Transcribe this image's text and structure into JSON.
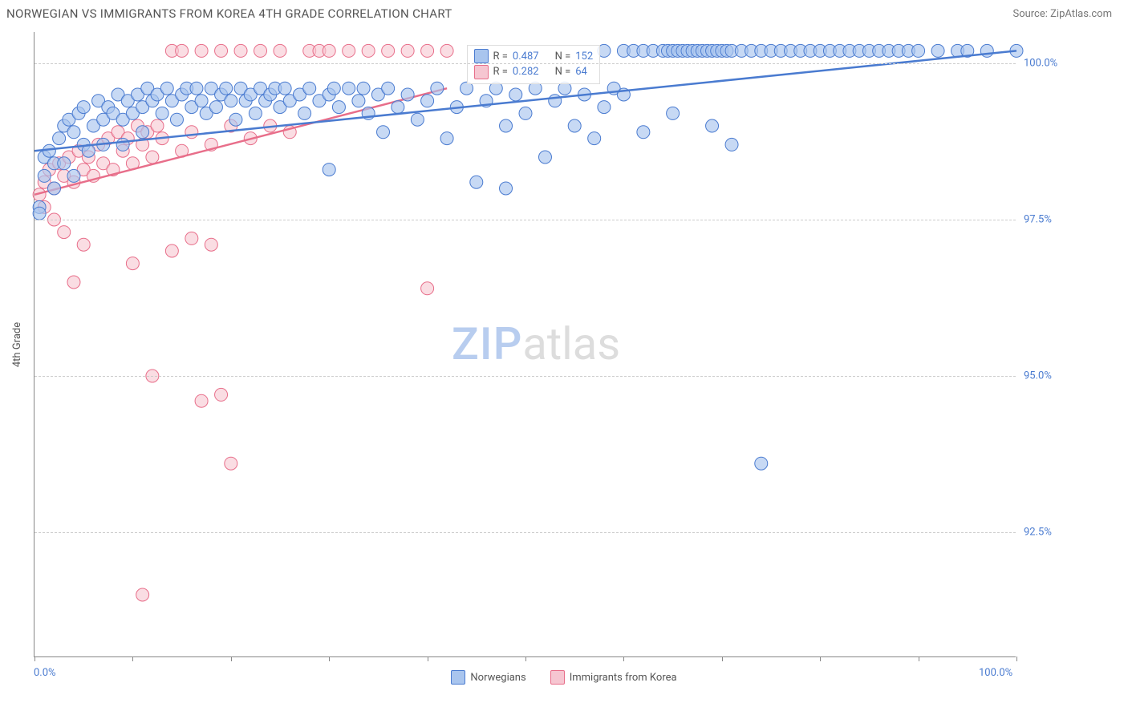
{
  "header": {
    "title": "NORWEGIAN VS IMMIGRANTS FROM KOREA 4TH GRADE CORRELATION CHART",
    "source": "Source: ZipAtlas.com"
  },
  "axis": {
    "y_title": "4th Grade",
    "x_min_label": "0.0%",
    "x_max_label": "100.0%",
    "y_ticks": [
      {
        "v": 92.5,
        "label": "92.5%"
      },
      {
        "v": 95.0,
        "label": "95.0%"
      },
      {
        "v": 97.5,
        "label": "97.5%"
      },
      {
        "v": 100.0,
        "label": "100.0%"
      }
    ],
    "x_ticks_pct": [
      0,
      10,
      20,
      30,
      40,
      50,
      60,
      70,
      80,
      90,
      100
    ],
    "x_range": [
      0,
      100
    ],
    "y_range": [
      90.5,
      100.5
    ]
  },
  "legend_top": {
    "rows": [
      {
        "color_fill": "#a9c5ee",
        "color_stroke": "#4a7bd0",
        "r_label": "R =",
        "r_val": "0.487",
        "n_label": "N =",
        "n_val": "152"
      },
      {
        "color_fill": "#f6c6d1",
        "color_stroke": "#e86e8a",
        "r_label": "R =",
        "r_val": "0.282",
        "n_label": "N =",
        "n_val": " 64"
      }
    ]
  },
  "legend_bottom": {
    "items": [
      {
        "label": "Norwegians",
        "fill": "#a9c5ee",
        "stroke": "#4a7bd0"
      },
      {
        "label": "Immigrants from Korea",
        "fill": "#f6c6d1",
        "stroke": "#e86e8a"
      }
    ]
  },
  "watermark": {
    "pre": "ZIP",
    "post": "atlas"
  },
  "series": {
    "blue": {
      "fill": "#a9c5ee",
      "stroke": "#4a7bd0",
      "opacity": 0.65,
      "radius": 8,
      "trend": {
        "x1": 0,
        "y1": 98.6,
        "x2": 100,
        "y2": 100.2,
        "width": 2.5
      },
      "points": [
        [
          0.5,
          97.7
        ],
        [
          0.5,
          97.6
        ],
        [
          1,
          98.2
        ],
        [
          1,
          98.5
        ],
        [
          1.5,
          98.6
        ],
        [
          2,
          98.4
        ],
        [
          2,
          98.0
        ],
        [
          2.5,
          98.8
        ],
        [
          3,
          99.0
        ],
        [
          3,
          98.4
        ],
        [
          3.5,
          99.1
        ],
        [
          4,
          98.9
        ],
        [
          4,
          98.2
        ],
        [
          4.5,
          99.2
        ],
        [
          5,
          98.7
        ],
        [
          5,
          99.3
        ],
        [
          5.5,
          98.6
        ],
        [
          6,
          99.0
        ],
        [
          6.5,
          99.4
        ],
        [
          7,
          99.1
        ],
        [
          7,
          98.7
        ],
        [
          7.5,
          99.3
        ],
        [
          8,
          99.2
        ],
        [
          8.5,
          99.5
        ],
        [
          9,
          99.1
        ],
        [
          9,
          98.7
        ],
        [
          9.5,
          99.4
        ],
        [
          10,
          99.2
        ],
        [
          10.5,
          99.5
        ],
        [
          11,
          99.3
        ],
        [
          11,
          98.9
        ],
        [
          11.5,
          99.6
        ],
        [
          12,
          99.4
        ],
        [
          12.5,
          99.5
        ],
        [
          13,
          99.2
        ],
        [
          13.5,
          99.6
        ],
        [
          14,
          99.4
        ],
        [
          14.5,
          99.1
        ],
        [
          15,
          99.5
        ],
        [
          15.5,
          99.6
        ],
        [
          16,
          99.3
        ],
        [
          16.5,
          99.6
        ],
        [
          17,
          99.4
        ],
        [
          17.5,
          99.2
        ],
        [
          18,
          99.6
        ],
        [
          18.5,
          99.3
        ],
        [
          19,
          99.5
        ],
        [
          19.5,
          99.6
        ],
        [
          20,
          99.4
        ],
        [
          20.5,
          99.1
        ],
        [
          21,
          99.6
        ],
        [
          21.5,
          99.4
        ],
        [
          22,
          99.5
        ],
        [
          22.5,
          99.2
        ],
        [
          23,
          99.6
        ],
        [
          23.5,
          99.4
        ],
        [
          24,
          99.5
        ],
        [
          24.5,
          99.6
        ],
        [
          25,
          99.3
        ],
        [
          25.5,
          99.6
        ],
        [
          26,
          99.4
        ],
        [
          27,
          99.5
        ],
        [
          27.5,
          99.2
        ],
        [
          28,
          99.6
        ],
        [
          29,
          99.4
        ],
        [
          30,
          99.5
        ],
        [
          30,
          98.3
        ],
        [
          30.5,
          99.6
        ],
        [
          31,
          99.3
        ],
        [
          32,
          99.6
        ],
        [
          33,
          99.4
        ],
        [
          33.5,
          99.6
        ],
        [
          34,
          99.2
        ],
        [
          35,
          99.5
        ],
        [
          35.5,
          98.9
        ],
        [
          36,
          99.6
        ],
        [
          37,
          99.3
        ],
        [
          38,
          99.5
        ],
        [
          39,
          99.1
        ],
        [
          40,
          99.4
        ],
        [
          41,
          99.6
        ],
        [
          42,
          98.8
        ],
        [
          43,
          99.3
        ],
        [
          44,
          99.6
        ],
        [
          45,
          98.1
        ],
        [
          46,
          99.4
        ],
        [
          47,
          99.6
        ],
        [
          48,
          98.0
        ],
        [
          48,
          99.0
        ],
        [
          49,
          99.5
        ],
        [
          50,
          99.2
        ],
        [
          51,
          99.6
        ],
        [
          52,
          98.5
        ],
        [
          53,
          99.4
        ],
        [
          54,
          99.6
        ],
        [
          55,
          99.0
        ],
        [
          56,
          99.5
        ],
        [
          57,
          98.8
        ],
        [
          58,
          99.3
        ],
        [
          58,
          100.2
        ],
        [
          59,
          99.6
        ],
        [
          60,
          99.5
        ],
        [
          60,
          100.2
        ],
        [
          61,
          100.2
        ],
        [
          62,
          100.2
        ],
        [
          62,
          98.9
        ],
        [
          63,
          100.2
        ],
        [
          64,
          100.2
        ],
        [
          64.5,
          100.2
        ],
        [
          65,
          100.2
        ],
        [
          65,
          99.2
        ],
        [
          65.5,
          100.2
        ],
        [
          66,
          100.2
        ],
        [
          66.5,
          100.2
        ],
        [
          67,
          100.2
        ],
        [
          67.5,
          100.2
        ],
        [
          68,
          100.2
        ],
        [
          68.5,
          100.2
        ],
        [
          69,
          100.2
        ],
        [
          69,
          99.0
        ],
        [
          69.5,
          100.2
        ],
        [
          70,
          100.2
        ],
        [
          70.5,
          100.2
        ],
        [
          71,
          100.2
        ],
        [
          71,
          98.7
        ],
        [
          72,
          100.2
        ],
        [
          73,
          100.2
        ],
        [
          74,
          100.2
        ],
        [
          74,
          93.6
        ],
        [
          75,
          100.2
        ],
        [
          76,
          100.2
        ],
        [
          77,
          100.2
        ],
        [
          78,
          100.2
        ],
        [
          79,
          100.2
        ],
        [
          80,
          100.2
        ],
        [
          81,
          100.2
        ],
        [
          82,
          100.2
        ],
        [
          83,
          100.2
        ],
        [
          84,
          100.2
        ],
        [
          85,
          100.2
        ],
        [
          86,
          100.2
        ],
        [
          87,
          100.2
        ],
        [
          88,
          100.2
        ],
        [
          89,
          100.2
        ],
        [
          90,
          100.2
        ],
        [
          92,
          100.2
        ],
        [
          94,
          100.2
        ],
        [
          95,
          100.2
        ],
        [
          97,
          100.2
        ],
        [
          100,
          100.2
        ]
      ]
    },
    "pink": {
      "fill": "#f6c6d1",
      "stroke": "#e86e8a",
      "opacity": 0.6,
      "radius": 8,
      "trend": {
        "x1": 0,
        "y1": 97.9,
        "x2": 42,
        "y2": 99.6,
        "width": 2.5
      },
      "points": [
        [
          0.5,
          97.9
        ],
        [
          1,
          98.1
        ],
        [
          1,
          97.7
        ],
        [
          1.5,
          98.3
        ],
        [
          2,
          98.0
        ],
        [
          2,
          97.5
        ],
        [
          2.5,
          98.4
        ],
        [
          3,
          98.2
        ],
        [
          3,
          97.3
        ],
        [
          3.5,
          98.5
        ],
        [
          4,
          98.1
        ],
        [
          4,
          96.5
        ],
        [
          4.5,
          98.6
        ],
        [
          5,
          98.3
        ],
        [
          5,
          97.1
        ],
        [
          5.5,
          98.5
        ],
        [
          6,
          98.2
        ],
        [
          6.5,
          98.7
        ],
        [
          7,
          98.4
        ],
        [
          7.5,
          98.8
        ],
        [
          8,
          98.3
        ],
        [
          8.5,
          98.9
        ],
        [
          9,
          98.6
        ],
        [
          9.5,
          98.8
        ],
        [
          10,
          98.4
        ],
        [
          10,
          96.8
        ],
        [
          10.5,
          99.0
        ],
        [
          11,
          98.7
        ],
        [
          11,
          91.5
        ],
        [
          11.5,
          98.9
        ],
        [
          12,
          98.5
        ],
        [
          12,
          95.0
        ],
        [
          12.5,
          99.0
        ],
        [
          13,
          98.8
        ],
        [
          14,
          100.2
        ],
        [
          14,
          97.0
        ],
        [
          15,
          98.6
        ],
        [
          15,
          100.2
        ],
        [
          16,
          98.9
        ],
        [
          16,
          97.2
        ],
        [
          17,
          100.2
        ],
        [
          17,
          94.6
        ],
        [
          18,
          98.7
        ],
        [
          18,
          97.1
        ],
        [
          19,
          100.2
        ],
        [
          19,
          94.7
        ],
        [
          20,
          99.0
        ],
        [
          20,
          93.6
        ],
        [
          21,
          100.2
        ],
        [
          22,
          98.8
        ],
        [
          23,
          100.2
        ],
        [
          24,
          99.0
        ],
        [
          25,
          100.2
        ],
        [
          26,
          98.9
        ],
        [
          28,
          100.2
        ],
        [
          29,
          100.2
        ],
        [
          30,
          100.2
        ],
        [
          32,
          100.2
        ],
        [
          34,
          100.2
        ],
        [
          36,
          100.2
        ],
        [
          38,
          100.2
        ],
        [
          40,
          100.2
        ],
        [
          40,
          96.4
        ],
        [
          42,
          100.2
        ]
      ]
    }
  },
  "colors": {
    "text": "#555555",
    "axis_text": "#4a7bd0",
    "grid": "#cccccc",
    "axis": "#888888",
    "bg": "#ffffff"
  }
}
